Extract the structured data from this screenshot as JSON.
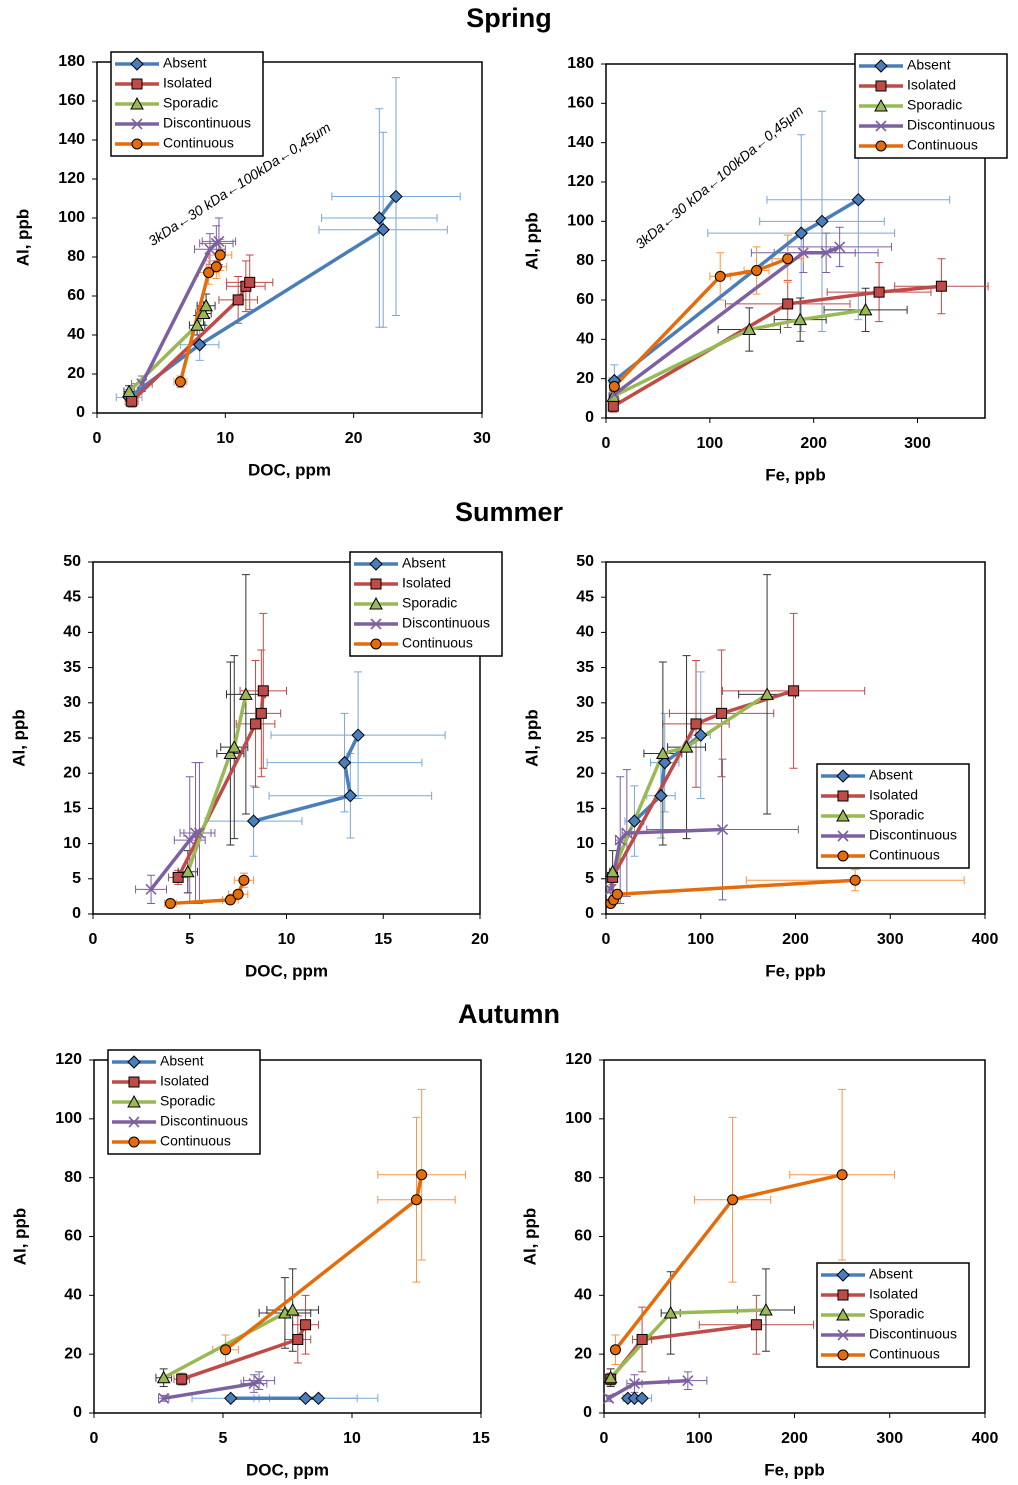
{
  "headings": [
    "Spring",
    "Summer",
    "Autumn"
  ],
  "chart_data": [
    {
      "type": "line",
      "xlabel": "DOC, ppm",
      "ylabel": "Al, ppb",
      "annotation": "3kDa←30 kDa←100kDa←0,45μm",
      "xlim": [
        0,
        30
      ],
      "xticks": [
        0,
        10,
        20,
        30
      ],
      "ylim": [
        0,
        180
      ],
      "yticks": [
        0,
        20,
        40,
        60,
        80,
        100,
        120,
        140,
        160,
        180
      ],
      "legend": "upper left",
      "series": [
        {
          "name": "Absent",
          "color": "#4a7ebb",
          "error_color": "#7aa7d8",
          "marker": "diamond",
          "x": [
            2.5,
            8,
            22.3,
            22,
            23.3
          ],
          "values": [
            8,
            35,
            94,
            100,
            111
          ],
          "x_err": [
            1,
            1.5,
            5,
            4.5,
            5
          ],
          "y_err": [
            4,
            8,
            50,
            56,
            61
          ]
        },
        {
          "name": "Isolated",
          "color": "#be4b48",
          "error_color": "#be4b48",
          "marker": "square",
          "x": [
            2.7,
            11,
            11.6,
            11.9
          ],
          "values": [
            6,
            58,
            65,
            67
          ],
          "x_err": [
            0.5,
            1.5,
            1.5,
            1.8
          ],
          "y_err": [
            3,
            12,
            13,
            14
          ]
        },
        {
          "name": "Sporadic",
          "color": "#98b954",
          "error_color": "#333333",
          "marker": "triangle",
          "x": [
            2.5,
            7.8,
            8.3,
            8.5
          ],
          "values": [
            11,
            45,
            51,
            55
          ],
          "x_err": [
            0.4,
            0.6,
            0.6,
            0.7
          ],
          "y_err": [
            3,
            5,
            6,
            6
          ]
        },
        {
          "name": "Discontinuous",
          "color": "#7d60a0",
          "error_color": "#7d60a0",
          "marker": "x",
          "x": [
            3.5,
            8.8,
            9.3,
            9.5
          ],
          "values": [
            15,
            84,
            87,
            88
          ],
          "x_err": [
            0.8,
            1.2,
            1.3,
            1.3
          ],
          "y_err": [
            4,
            8,
            9,
            12
          ]
        },
        {
          "name": "Continuous",
          "color": "#e46c0a",
          "error_color": "#f79646",
          "marker": "circle",
          "x": [
            6.5,
            8.7,
            9.3,
            9.6
          ],
          "values": [
            16,
            72,
            75,
            81
          ],
          "x_err": [
            0.5,
            0.8,
            0.8,
            0.9
          ],
          "y_err": [
            3,
            6,
            6,
            8
          ]
        }
      ]
    },
    {
      "type": "line",
      "xlabel": "Fe, ppb",
      "ylabel": "Al, ppb",
      "annotation": "3kDa←30 kDa←100kDa←0,45μm",
      "xlim": [
        0,
        365
      ],
      "xticks": [
        0,
        100,
        200,
        300
      ],
      "ylim": [
        0,
        180
      ],
      "yticks": [
        0,
        20,
        40,
        60,
        80,
        100,
        120,
        140,
        160,
        180
      ],
      "legend": "upper right",
      "series": [
        {
          "name": "Absent",
          "color": "#4a7ebb",
          "error_color": "#7aa7d8",
          "marker": "diamond",
          "x": [
            8,
            188,
            208,
            243
          ],
          "values": [
            19,
            94,
            100,
            111
          ],
          "x_err": [
            5,
            90,
            60,
            88
          ],
          "y_err": [
            8,
            50,
            56,
            61
          ]
        },
        {
          "name": "Isolated",
          "color": "#be4b48",
          "error_color": "#be4b48",
          "marker": "square",
          "x": [
            7,
            175,
            263,
            323
          ],
          "values": [
            6,
            58,
            64,
            67
          ],
          "x_err": [
            4,
            60,
            50,
            45
          ],
          "y_err": [
            3,
            12,
            15,
            14
          ]
        },
        {
          "name": "Sporadic",
          "color": "#98b954",
          "error_color": "#333333",
          "marker": "triangle",
          "x": [
            7,
            138,
            187,
            250
          ],
          "values": [
            11,
            45,
            50,
            55
          ],
          "x_err": [
            4,
            30,
            25,
            40
          ],
          "y_err": [
            3,
            11,
            11,
            11
          ]
        },
        {
          "name": "Discontinuous",
          "color": "#7d60a0",
          "error_color": "#7d60a0",
          "marker": "x",
          "x": [
            8,
            190,
            212,
            225
          ],
          "values": [
            12,
            84,
            84,
            87
          ],
          "x_err": [
            4,
            50,
            50,
            50
          ],
          "y_err": [
            4,
            10,
            10,
            10
          ]
        },
        {
          "name": "Continuous",
          "color": "#e46c0a",
          "error_color": "#f79646",
          "marker": "circle",
          "x": [
            8,
            110,
            145,
            175
          ],
          "values": [
            16,
            72,
            75,
            81
          ],
          "x_err": [
            4,
            10,
            12,
            15
          ],
          "y_err": [
            3,
            12,
            12,
            12
          ]
        }
      ]
    },
    {
      "type": "line",
      "xlabel": "DOC, ppm",
      "ylabel": "Al, ppb",
      "xlim": [
        0,
        20
      ],
      "xticks": [
        0,
        5,
        10,
        15,
        20
      ],
      "ylim": [
        0,
        50
      ],
      "yticks": [
        0,
        5,
        10,
        15,
        20,
        25,
        30,
        35,
        40,
        45,
        50
      ],
      "legend": "upper right",
      "series": [
        {
          "name": "Absent",
          "color": "#4a7ebb",
          "error_color": "#7aa7d8",
          "marker": "diamond",
          "x": [
            8.3,
            13.3,
            13,
            13.7
          ],
          "values": [
            13.2,
            16.8,
            21.5,
            25.4
          ],
          "x_err": [
            2.5,
            4.2,
            4,
            4.5
          ],
          "y_err": [
            5,
            6,
            7,
            9
          ]
        },
        {
          "name": "Isolated",
          "color": "#be4b48",
          "error_color": "#be4b48",
          "marker": "square",
          "x": [
            4.4,
            8.4,
            8.7,
            8.8
          ],
          "values": [
            5.2,
            27,
            28.5,
            31.7
          ],
          "x_err": [
            0.5,
            1,
            1,
            1.2
          ],
          "y_err": [
            1,
            9,
            9,
            11
          ]
        },
        {
          "name": "Sporadic",
          "color": "#98b954",
          "error_color": "#333333",
          "marker": "triangle",
          "x": [
            4.9,
            7.1,
            7.3,
            7.9
          ],
          "values": [
            6,
            22.8,
            23.7,
            31.2
          ],
          "x_err": [
            0.5,
            0.7,
            0.7,
            1
          ],
          "y_err": [
            3,
            13,
            13,
            17
          ]
        },
        {
          "name": "Discontinuous",
          "color": "#7d60a0",
          "error_color": "#7d60a0",
          "marker": "x",
          "x": [
            3,
            5,
            5.3,
            5.5
          ],
          "values": [
            3.5,
            10.5,
            11.5,
            11.5
          ],
          "x_err": [
            0.8,
            0.8,
            0.8,
            0.8
          ],
          "y_err": [
            2,
            9,
            10,
            10
          ]
        },
        {
          "name": "Continuous",
          "color": "#e46c0a",
          "error_color": "#f79646",
          "marker": "circle",
          "x": [
            4,
            7.1,
            7.5,
            7.8
          ],
          "values": [
            1.5,
            2,
            2.8,
            4.8
          ],
          "x_err": [
            0.3,
            0.4,
            0.5,
            0.5
          ],
          "y_err": [
            0.3,
            0.5,
            0.5,
            1
          ]
        }
      ]
    },
    {
      "type": "line",
      "xlabel": "Fe, ppb",
      "ylabel": "Al, ppb",
      "xlim": [
        0,
        400
      ],
      "xticks": [
        0,
        100,
        200,
        300,
        400
      ],
      "ylim": [
        0,
        50
      ],
      "yticks": [
        0,
        5,
        10,
        15,
        20,
        25,
        30,
        35,
        40,
        45,
        50
      ],
      "legend": "lower right",
      "series": [
        {
          "name": "Absent",
          "color": "#4a7ebb",
          "error_color": "#7aa7d8",
          "marker": "diamond",
          "x": [
            30,
            58,
            62,
            100
          ],
          "values": [
            13.2,
            16.8,
            21.5,
            25.4
          ],
          "x_err": [
            10,
            15,
            15,
            10
          ],
          "y_err": [
            5,
            6,
            7,
            9
          ]
        },
        {
          "name": "Isolated",
          "color": "#be4b48",
          "error_color": "#be4b48",
          "marker": "square",
          "x": [
            7,
            95,
            122,
            198
          ],
          "values": [
            5.2,
            27,
            28.5,
            31.7
          ],
          "x_err": [
            3,
            35,
            55,
            75
          ],
          "y_err": [
            1,
            9,
            9,
            11
          ]
        },
        {
          "name": "Sporadic",
          "color": "#98b954",
          "error_color": "#333333",
          "marker": "triangle",
          "x": [
            7,
            60,
            85,
            170
          ],
          "values": [
            6,
            22.8,
            23.7,
            31.2
          ],
          "x_err": [
            3,
            20,
            20,
            30
          ],
          "y_err": [
            3,
            13,
            13,
            17
          ]
        },
        {
          "name": "Discontinuous",
          "color": "#7d60a0",
          "error_color": "#7d60a0",
          "marker": "x",
          "x": [
            5,
            15,
            22,
            123
          ],
          "values": [
            3.5,
            10.5,
            11.5,
            12
          ],
          "x_err": [
            3,
            5,
            5,
            80
          ],
          "y_err": [
            2,
            9,
            9,
            10
          ]
        },
        {
          "name": "Continuous",
          "color": "#e46c0a",
          "error_color": "#f79646",
          "marker": "circle",
          "x": [
            5,
            8,
            12,
            263
          ],
          "values": [
            1.5,
            2,
            2.8,
            4.8
          ],
          "x_err": [
            2,
            3,
            3,
            115
          ],
          "y_err": [
            0.3,
            0.5,
            0.5,
            1.5
          ]
        }
      ]
    },
    {
      "type": "line",
      "xlabel": "DOC, ppm",
      "ylabel": "Al, ppb",
      "xlim": [
        0,
        15
      ],
      "xticks": [
        0,
        5,
        10,
        15
      ],
      "ylim": [
        0,
        120
      ],
      "yticks": [
        0,
        20,
        40,
        60,
        80,
        100,
        120
      ],
      "legend": "upper left",
      "series": [
        {
          "name": "Absent",
          "color": "#4a7ebb",
          "error_color": "#7aa7d8",
          "marker": "diamond",
          "x": [
            5.3,
            8.2,
            8.7
          ],
          "values": [
            5,
            5,
            5
          ],
          "x_err": [
            1.5,
            2,
            2.3
          ],
          "y_err": [
            1,
            1,
            1
          ]
        },
        {
          "name": "Isolated",
          "color": "#be4b48",
          "error_color": "#be4b48",
          "marker": "square",
          "x": [
            3.4,
            7.9,
            8.2
          ],
          "values": [
            11.5,
            25,
            30
          ],
          "x_err": [
            0.3,
            0.5,
            0.5
          ],
          "y_err": [
            2,
            8,
            10
          ]
        },
        {
          "name": "Sporadic",
          "color": "#98b954",
          "error_color": "#333333",
          "marker": "triangle",
          "x": [
            2.7,
            7.4,
            7.7
          ],
          "values": [
            12,
            34,
            35
          ],
          "x_err": [
            0.3,
            1,
            1
          ],
          "y_err": [
            3,
            12,
            14
          ]
        },
        {
          "name": "Discontinuous",
          "color": "#7d60a0",
          "error_color": "#7d60a0",
          "marker": "x",
          "x": [
            2.7,
            6.2,
            6.4
          ],
          "values": [
            5,
            10,
            11
          ],
          "x_err": [
            0.2,
            0.5,
            0.6
          ],
          "y_err": [
            1,
            3,
            3
          ]
        },
        {
          "name": "Continuous",
          "color": "#e46c0a",
          "error_color": "#f79646",
          "marker": "circle",
          "x": [
            5.1,
            12.5,
            12.7
          ],
          "values": [
            21.5,
            72.5,
            81
          ],
          "x_err": [
            0.5,
            1.5,
            1.7
          ],
          "y_err": [
            5,
            28,
            29
          ]
        }
      ]
    },
    {
      "type": "line",
      "xlabel": "Fe, ppb",
      "ylabel": "Al, ppb",
      "xlim": [
        0,
        400
      ],
      "xticks": [
        0,
        100,
        200,
        300,
        400
      ],
      "ylim": [
        0,
        120
      ],
      "yticks": [
        0,
        20,
        40,
        60,
        80,
        100,
        120
      ],
      "legend": "lower right",
      "series": [
        {
          "name": "Absent",
          "color": "#4a7ebb",
          "error_color": "#7aa7d8",
          "marker": "diamond",
          "x": [
            25,
            32,
            40
          ],
          "values": [
            5,
            5,
            5
          ],
          "x_err": [
            5,
            8,
            10
          ],
          "y_err": [
            1,
            1,
            1
          ]
        },
        {
          "name": "Isolated",
          "color": "#be4b48",
          "error_color": "#be4b48",
          "marker": "square",
          "x": [
            7,
            40,
            160
          ],
          "values": [
            11.5,
            25,
            30
          ],
          "x_err": [
            3,
            10,
            60
          ],
          "y_err": [
            2,
            11,
            10
          ]
        },
        {
          "name": "Sporadic",
          "color": "#98b954",
          "error_color": "#333333",
          "marker": "triangle",
          "x": [
            7,
            70,
            170
          ],
          "values": [
            12,
            34,
            35
          ],
          "x_err": [
            3,
            10,
            30
          ],
          "y_err": [
            3,
            14,
            14
          ]
        },
        {
          "name": "Discontinuous",
          "color": "#7d60a0",
          "error_color": "#7d60a0",
          "marker": "x",
          "x": [
            5,
            32,
            88
          ],
          "values": [
            5,
            10,
            11
          ],
          "x_err": [
            2,
            8,
            20
          ],
          "y_err": [
            1,
            3,
            3
          ]
        },
        {
          "name": "Continuous",
          "color": "#e46c0a",
          "error_color": "#f79646",
          "marker": "circle",
          "x": [
            12,
            135,
            250
          ],
          "values": [
            21.5,
            72.5,
            81
          ],
          "x_err": [
            4,
            40,
            55
          ],
          "y_err": [
            5,
            28,
            29
          ]
        }
      ]
    }
  ]
}
